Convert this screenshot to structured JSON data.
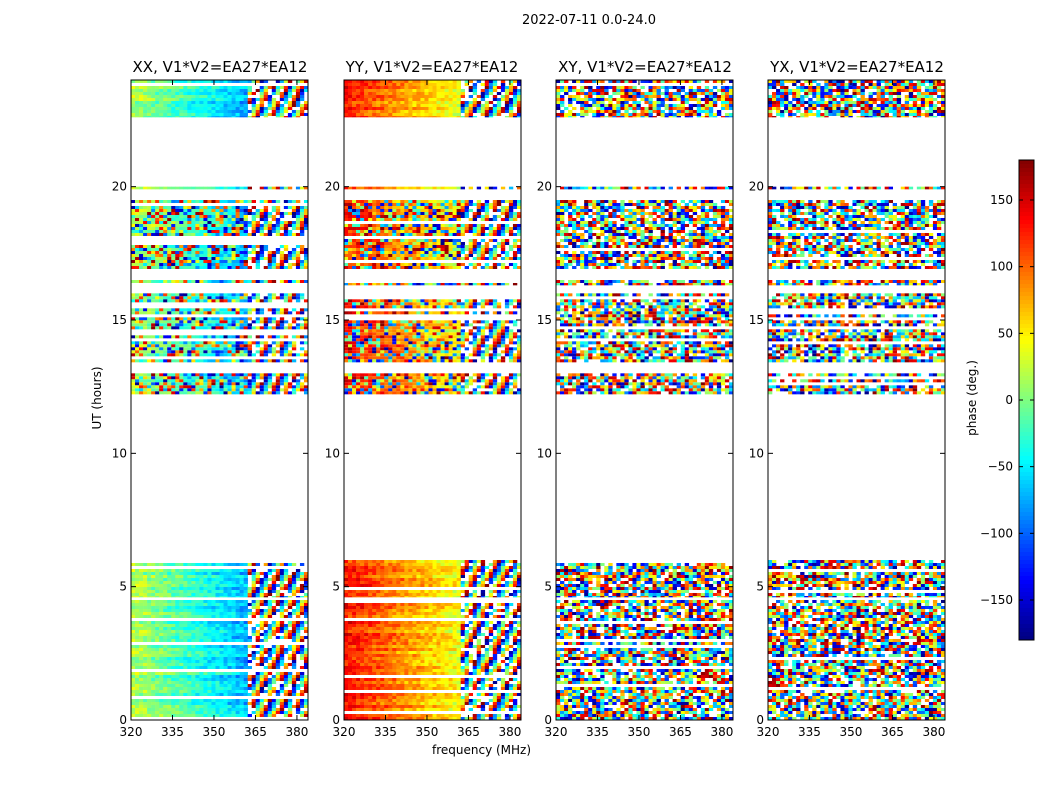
{
  "figure": {
    "suptitle": "2022-07-11 0.0-24.0",
    "ylabel": "UT (hours)",
    "xlabel": "frequency (MHz)",
    "colorbar_label": "phase (deg.)"
  },
  "chart_data": {
    "type": "heatmap",
    "title": "2022-07-11 0.0-24.0",
    "xlabel": "frequency (MHz)",
    "ylabel": "UT (hours)",
    "xlim": [
      320,
      384
    ],
    "ylim": [
      0,
      24
    ],
    "xticks": [
      320,
      335,
      350,
      365,
      380
    ],
    "yticks": [
      0,
      5,
      10,
      15,
      20
    ],
    "colorbar": {
      "label": "phase (deg.)",
      "range": [
        -180,
        180
      ],
      "ticks": [
        150,
        100,
        50,
        0,
        -50,
        -100,
        -150
      ],
      "tick_labels": [
        "150",
        "100",
        "50",
        "0",
        "−50",
        "−100",
        "−150"
      ],
      "colormap": "jet"
    },
    "panels": [
      {
        "title": "XX, V1*V2=EA27*EA12",
        "pol": "XX",
        "base_phase": 20,
        "coherent": true
      },
      {
        "title": "YY, V1*V2=EA27*EA12",
        "pol": "YY",
        "base_phase": 130,
        "coherent": true
      },
      {
        "title": "XY, V1*V2=EA27*EA12",
        "pol": "XY",
        "base_phase": 0,
        "coherent": false
      },
      {
        "title": "YX, V1*V2=EA27*EA12",
        "pol": "YX",
        "base_phase": 0,
        "coherent": false
      }
    ],
    "data_time_ranges_hours": [
      [
        0,
        4.5
      ],
      [
        4.6,
        6.0
      ],
      [
        12.2,
        13.0
      ],
      [
        13.4,
        16.0
      ],
      [
        16.3,
        16.5
      ],
      [
        16.9,
        19.5
      ],
      [
        19.9,
        20.0
      ],
      [
        22.6,
        24.0
      ]
    ]
  }
}
